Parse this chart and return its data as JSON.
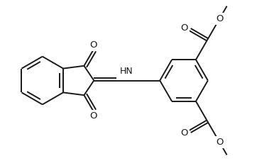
{
  "bg_color": "#ffffff",
  "line_color": "#1a1a1a",
  "line_width": 1.4,
  "figsize": [
    3.79,
    2.27
  ],
  "dpi": 100,
  "xlim": [
    0,
    10
  ],
  "ylim": [
    0,
    6
  ]
}
